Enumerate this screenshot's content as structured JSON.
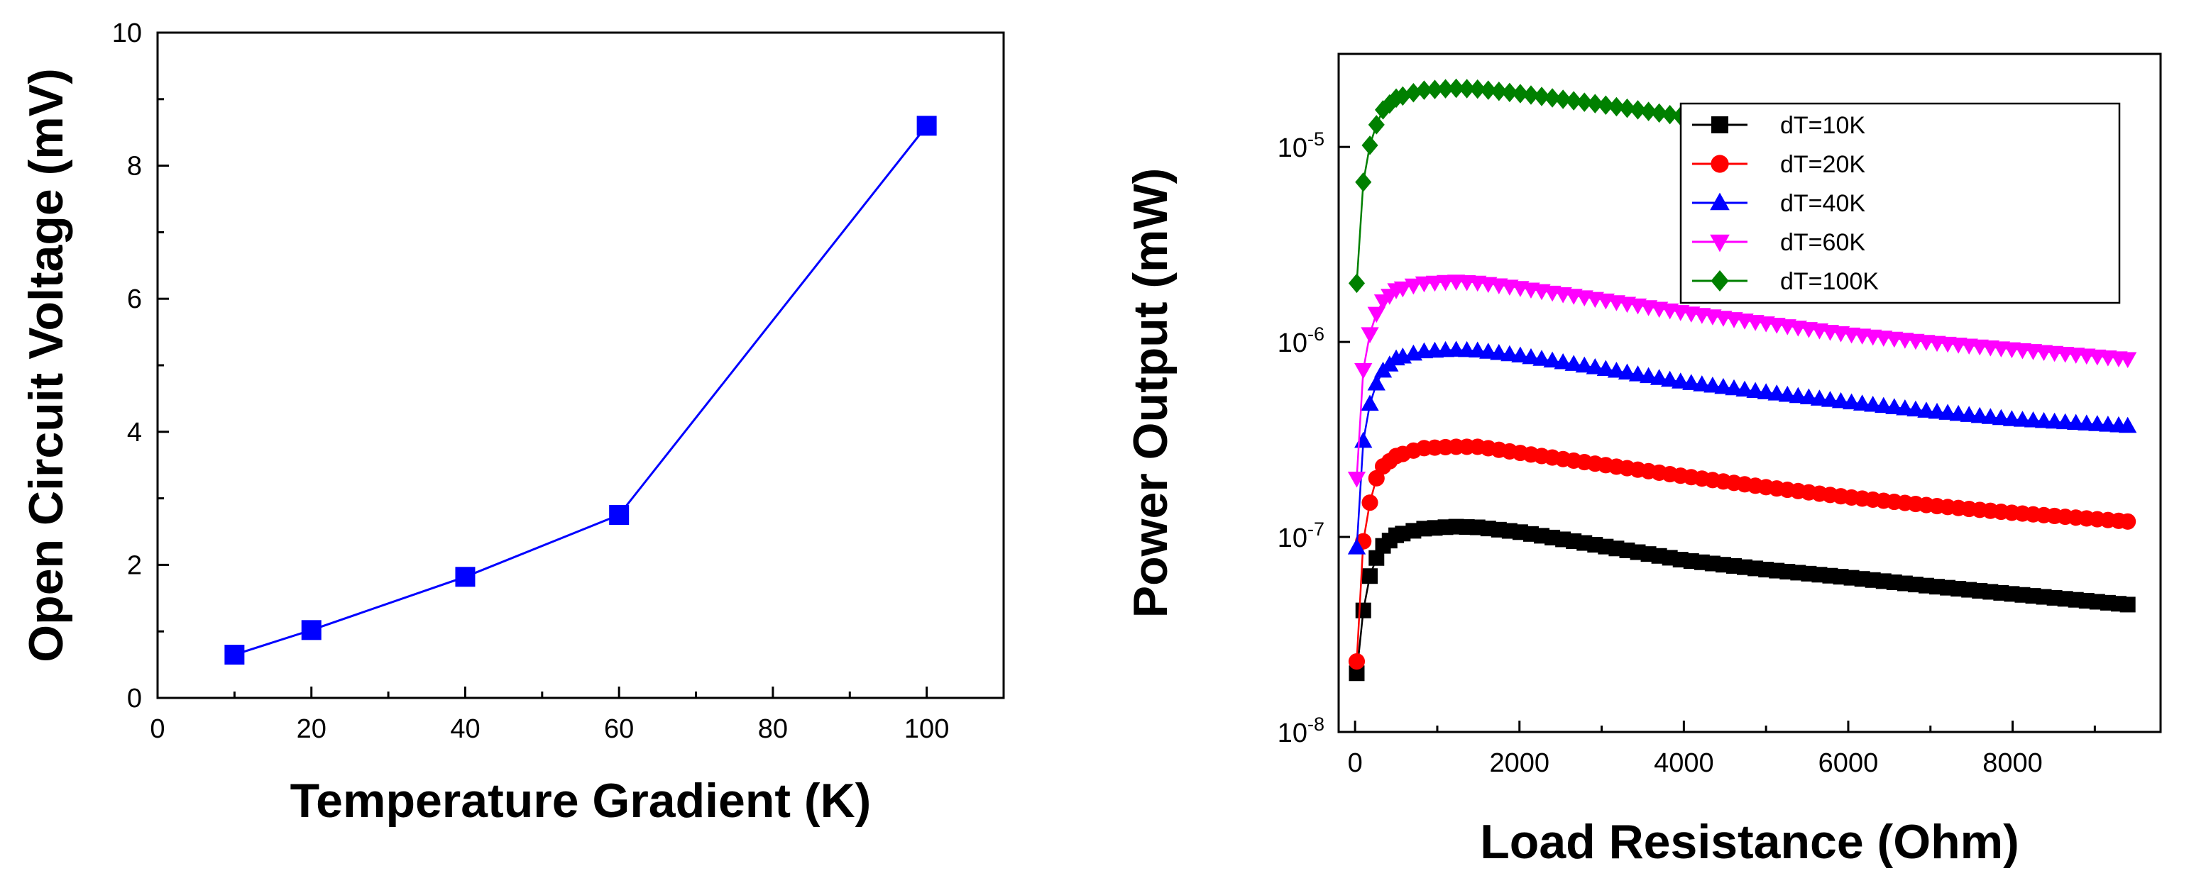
{
  "chart_data": [
    {
      "type": "line",
      "title": "",
      "xlabel": "Temperature Gradient (K)",
      "ylabel": "Open Circuit Voltage (mV)",
      "xlim": [
        0,
        110
      ],
      "ylim": [
        0,
        10
      ],
      "xticks": [
        0,
        20,
        40,
        60,
        80,
        100
      ],
      "yticks": [
        0,
        2,
        4,
        6,
        8,
        10
      ],
      "grid": false,
      "series": [
        {
          "color": "#0000ff",
          "marker": "square",
          "x": [
            10,
            20,
            40,
            60,
            100
          ],
          "y": [
            0.65,
            1.02,
            1.82,
            2.75,
            8.6
          ]
        }
      ]
    },
    {
      "type": "line",
      "title": "",
      "xlabel": "Load Resistance (Ohm)",
      "ylabel": "Power Output (mW)",
      "xlim": [
        -200,
        9800
      ],
      "ylim": [
        1e-08,
        3e-05
      ],
      "yscale": "log",
      "xticks": [
        0,
        2000,
        4000,
        6000,
        8000
      ],
      "ytick_labels": [
        {
          "value": 1e-08,
          "base": "10",
          "exp": "-8"
        },
        {
          "value": 1e-07,
          "base": "10",
          "exp": "-7"
        },
        {
          "value": 1e-06,
          "base": "10",
          "exp": "-6"
        },
        {
          "value": 1e-05,
          "base": "10",
          "exp": "-5"
        }
      ],
      "grid": false,
      "legend": "top-right",
      "series": [
        {
          "name": "dT=10K",
          "color": "#000000",
          "marker": "square",
          "x": [
            20,
            100,
            180,
            260,
            340,
            500,
            800,
            1200,
            1500,
            2000,
            3000,
            4000,
            5000,
            6000,
            7000,
            8000,
            9400
          ],
          "y": [
            2e-08,
            4.2e-08,
            6.3e-08,
            7.8e-08,
            9e-08,
            1.02e-07,
            1.1e-07,
            1.13e-07,
            1.12e-07,
            1.06e-07,
            9e-08,
            7.6e-08,
            6.8e-08,
            6.2e-08,
            5.6e-08,
            5.1e-08,
            4.5e-08
          ]
        },
        {
          "name": "dT=20K",
          "color": "#ff0000",
          "marker": "circle",
          "x": [
            20,
            100,
            180,
            260,
            340,
            500,
            800,
            1200,
            1500,
            2000,
            3000,
            4000,
            5000,
            6000,
            7000,
            8000,
            9400
          ],
          "y": [
            2.3e-08,
            9.5e-08,
            1.5e-07,
            2e-07,
            2.3e-07,
            2.6e-07,
            2.85e-07,
            2.9e-07,
            2.9e-07,
            2.7e-07,
            2.35e-07,
            2.05e-07,
            1.8e-07,
            1.6e-07,
            1.45e-07,
            1.33e-07,
            1.2e-07
          ]
        },
        {
          "name": "dT=40K",
          "color": "#0000ff",
          "marker": "triangle-up",
          "x": [
            20,
            100,
            180,
            260,
            340,
            500,
            800,
            1200,
            1500,
            2000,
            3000,
            4000,
            5000,
            6000,
            7000,
            8000,
            9400
          ],
          "y": [
            8.8e-08,
            3.1e-07,
            4.8e-07,
            6.1e-07,
            7.1e-07,
            8.2e-07,
            8.9e-07,
            9.1e-07,
            9e-07,
            8.5e-07,
            7.3e-07,
            6.2e-07,
            5.5e-07,
            4.9e-07,
            4.4e-07,
            4e-07,
            3.7e-07
          ]
        },
        {
          "name": "dT=60K",
          "color": "#ff00ff",
          "marker": "triangle-down",
          "x": [
            20,
            100,
            180,
            260,
            340,
            500,
            800,
            1200,
            1500,
            2000,
            3000,
            4000,
            5000,
            6000,
            7000,
            8000,
            9400
          ],
          "y": [
            2e-07,
            7.2e-07,
            1.1e-06,
            1.4e-06,
            1.62e-06,
            1.85e-06,
            2e-06,
            2.05e-06,
            2.02e-06,
            1.9e-06,
            1.65e-06,
            1.42e-06,
            1.25e-06,
            1.1e-06,
            1e-06,
            9.2e-07,
            8.2e-07
          ]
        },
        {
          "name": "dT=100K",
          "color": "#008000",
          "marker": "diamond",
          "x": [
            20,
            100,
            180,
            260,
            340,
            500,
            800,
            1200,
            1500,
            2000,
            3000,
            4000,
            5000,
            6000,
            6700
          ],
          "y": [
            2e-06,
            6.6e-06,
            1.02e-05,
            1.3e-05,
            1.55e-05,
            1.78e-05,
            1.95e-05,
            2e-05,
            1.98e-05,
            1.88e-05,
            1.65e-05,
            1.43e-05,
            1.25e-05,
            1.1e-05,
            1e-05
          ]
        }
      ]
    }
  ]
}
